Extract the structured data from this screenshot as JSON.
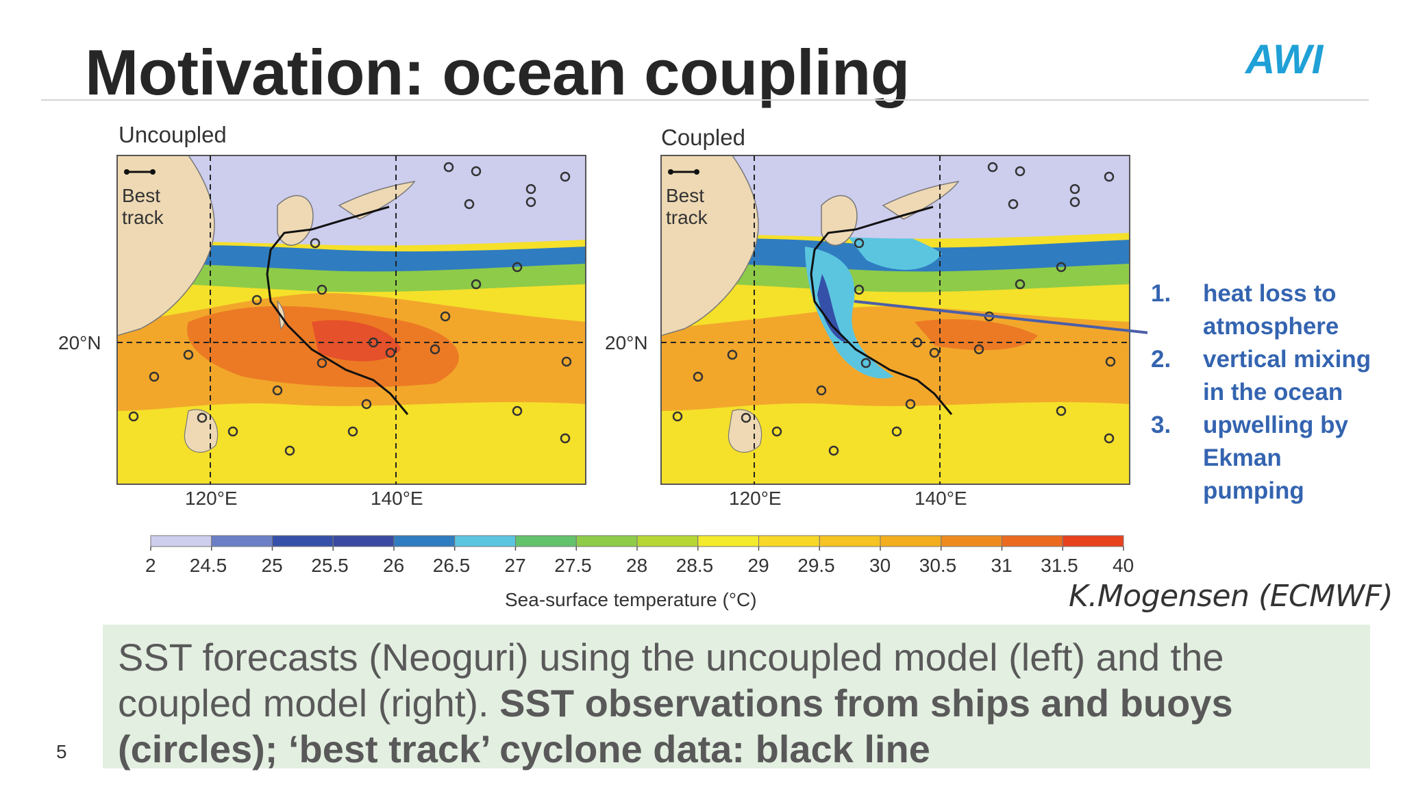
{
  "slide": {
    "title": "Motivation: ocean coupling",
    "logo_text": "AWI",
    "page_number": "5"
  },
  "figure": {
    "panels": [
      {
        "title": "Uncoupled",
        "legend_label": "Best track"
      },
      {
        "title": "Coupled",
        "legend_label": "Best track"
      }
    ],
    "lat_label": "20°N",
    "lon_labels": [
      "120°E",
      "140°E"
    ],
    "colorbar": {
      "ticks": [
        "2",
        "24.5",
        "25",
        "25.5",
        "26",
        "26.5",
        "27",
        "27.5",
        "28",
        "28.5",
        "29",
        "29.5",
        "30",
        "30.5",
        "31",
        "31.5",
        "40"
      ],
      "colors": [
        "#cdcdee",
        "#6a7fc6",
        "#3550a8",
        "#3a4aa0",
        "#2f7cc0",
        "#5bc5e0",
        "#63c26c",
        "#8ecb48",
        "#b6d634",
        "#f3ea2c",
        "#f7d827",
        "#f5c322",
        "#f3ae1e",
        "#ef8b1e",
        "#eb6a1e",
        "#e8411d"
      ],
      "label": "Sea-surface temperature (°C)"
    }
  },
  "mechanisms": [
    {
      "num": "1.",
      "text": "heat loss to atmosphere"
    },
    {
      "num": "2.",
      "text": "vertical mixing in the ocean"
    },
    {
      "num": "3.",
      "text": "upwelling by Ekman pumping"
    }
  ],
  "credit": "K.Mogensen (ECMWF)",
  "caption": {
    "normal": "SST forecasts (Neoguri) using the uncoupled model (left) and the coupled model (right). ",
    "bold": "SST observations from ships and buoys (circles); ‘best track’ cyclone data: black line"
  },
  "colors": {
    "title": "#262626",
    "list": "#3464b0",
    "caption_bg": "#e3efe1",
    "logo": "#1fa0d6"
  }
}
